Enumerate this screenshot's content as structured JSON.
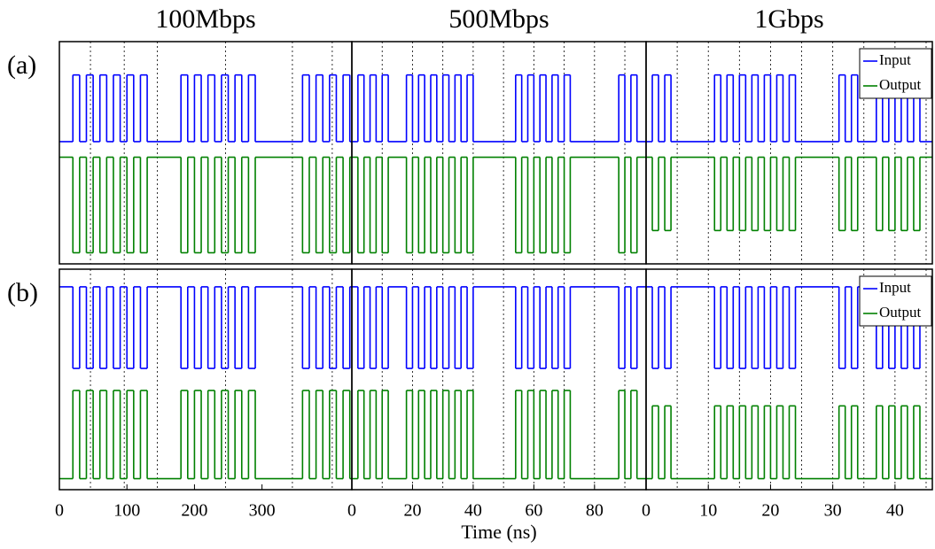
{
  "chart_data": [
    {
      "type": "line",
      "title": "100Mbps",
      "label": "(a)",
      "xlim": [
        0,
        433
      ],
      "ylim": [
        0,
        1
      ],
      "xgrid": [
        46,
        96,
        145,
        246,
        345,
        404
      ],
      "x": [
        0,
        20,
        30,
        40,
        50,
        60,
        70,
        80,
        90,
        100,
        110,
        120,
        130,
        180,
        190,
        200,
        210,
        220,
        230,
        240,
        250,
        260,
        270,
        280,
        290,
        360,
        370,
        380,
        390,
        400,
        410,
        420,
        430
      ],
      "series": [
        {
          "color": "#0000ff",
          "values": [
            0.55,
            0.85,
            0.55,
            0.85,
            0.55,
            0.85,
            0.55,
            0.85,
            0.55,
            0.85,
            0.55,
            0.85,
            0.55,
            0.85,
            0.55,
            0.85,
            0.55,
            0.85,
            0.55,
            0.85,
            0.55,
            0.85,
            0.55,
            0.85,
            0.55,
            0.85,
            0.55,
            0.85,
            0.55,
            0.85,
            0.55,
            0.85,
            0.55
          ]
        },
        {
          "color": "#008000",
          "values": [
            0.48,
            0.05,
            0.48,
            0.05,
            0.48,
            0.05,
            0.48,
            0.05,
            0.48,
            0.05,
            0.48,
            0.05,
            0.48,
            0.05,
            0.48,
            0.05,
            0.48,
            0.05,
            0.48,
            0.05,
            0.48,
            0.05,
            0.48,
            0.05,
            0.48,
            0.05,
            0.48,
            0.05,
            0.48,
            0.05,
            0.48,
            0.05,
            0.48
          ]
        }
      ]
    },
    {
      "type": "line",
      "title": "500Mbps",
      "xlim": [
        0,
        97
      ],
      "ylim": [
        0,
        1
      ],
      "xgrid": [
        10,
        20,
        30,
        40,
        50,
        60,
        70,
        80,
        90
      ],
      "x": [
        0,
        2,
        4,
        6,
        8,
        10,
        12,
        18,
        20,
        22,
        24,
        26,
        28,
        30,
        32,
        34,
        36,
        38,
        40,
        54,
        56,
        58,
        60,
        62,
        64,
        66,
        68,
        70,
        72,
        88,
        90,
        92,
        94
      ],
      "series": [
        {
          "color": "#0000ff",
          "values": [
            0.55,
            0.85,
            0.55,
            0.85,
            0.55,
            0.85,
            0.55,
            0.85,
            0.55,
            0.85,
            0.55,
            0.85,
            0.55,
            0.85,
            0.55,
            0.85,
            0.55,
            0.85,
            0.55,
            0.85,
            0.55,
            0.85,
            0.55,
            0.85,
            0.55,
            0.85,
            0.55,
            0.85,
            0.55,
            0.85,
            0.55,
            0.85,
            0.55
          ]
        },
        {
          "color": "#008000",
          "values": [
            0.48,
            0.05,
            0.48,
            0.05,
            0.48,
            0.05,
            0.48,
            0.05,
            0.48,
            0.05,
            0.48,
            0.05,
            0.48,
            0.05,
            0.48,
            0.05,
            0.48,
            0.05,
            0.48,
            0.05,
            0.48,
            0.05,
            0.48,
            0.05,
            0.48,
            0.05,
            0.48,
            0.05,
            0.48,
            0.05,
            0.48,
            0.05,
            0.48
          ]
        }
      ]
    },
    {
      "type": "line",
      "title": "1Gbps",
      "xlim": [
        0,
        46
      ],
      "ylim": [
        0,
        1
      ],
      "xgrid": [
        5,
        10,
        15,
        20,
        25,
        30,
        35,
        40,
        45
      ],
      "legend": "upper right",
      "x": [
        0,
        1,
        2,
        3,
        4,
        11,
        12,
        13,
        14,
        15,
        16,
        17,
        18,
        19,
        20,
        21,
        22,
        23,
        24,
        31,
        32,
        33,
        34,
        37,
        38,
        39,
        40,
        41,
        42,
        43,
        44
      ],
      "series": [
        {
          "name": "Input",
          "color": "#0000ff",
          "values": [
            0.55,
            0.85,
            0.55,
            0.85,
            0.55,
            0.85,
            0.55,
            0.85,
            0.55,
            0.85,
            0.55,
            0.85,
            0.55,
            0.85,
            0.55,
            0.85,
            0.55,
            0.85,
            0.55,
            0.85,
            0.55,
            0.85,
            0.55,
            0.85,
            0.55,
            0.85,
            0.55,
            0.85,
            0.55,
            0.85,
            0.55
          ]
        },
        {
          "name": "Output",
          "color": "#008000",
          "values": [
            0.48,
            0.15,
            0.48,
            0.15,
            0.48,
            0.15,
            0.48,
            0.15,
            0.48,
            0.15,
            0.48,
            0.15,
            0.48,
            0.15,
            0.48,
            0.15,
            0.48,
            0.15,
            0.48,
            0.15,
            0.48,
            0.15,
            0.48,
            0.15,
            0.48,
            0.15,
            0.48,
            0.15,
            0.48,
            0.15,
            0.48
          ]
        }
      ]
    },
    {
      "type": "line",
      "label": "(b)",
      "xlim": [
        0,
        433
      ],
      "ylim": [
        0,
        1
      ],
      "xticks": [
        0,
        100,
        200,
        300
      ],
      "xgrid": [
        46,
        96,
        145,
        246,
        345,
        404
      ],
      "x": [
        0,
        20,
        30,
        40,
        50,
        60,
        70,
        80,
        90,
        100,
        110,
        120,
        130,
        180,
        190,
        200,
        210,
        220,
        230,
        240,
        250,
        260,
        270,
        280,
        290,
        360,
        370,
        380,
        390,
        400,
        410,
        420,
        430
      ],
      "series": [
        {
          "color": "#0000ff",
          "values": [
            0.92,
            0.55,
            0.92,
            0.55,
            0.92,
            0.55,
            0.92,
            0.55,
            0.92,
            0.55,
            0.92,
            0.55,
            0.92,
            0.55,
            0.92,
            0.55,
            0.92,
            0.55,
            0.92,
            0.55,
            0.92,
            0.55,
            0.92,
            0.55,
            0.92,
            0.55,
            0.92,
            0.55,
            0.92,
            0.55,
            0.92,
            0.55,
            0.92
          ]
        },
        {
          "color": "#008000",
          "values": [
            0.05,
            0.45,
            0.05,
            0.45,
            0.05,
            0.45,
            0.05,
            0.45,
            0.05,
            0.45,
            0.05,
            0.45,
            0.05,
            0.45,
            0.05,
            0.45,
            0.05,
            0.45,
            0.05,
            0.45,
            0.05,
            0.45,
            0.05,
            0.45,
            0.05,
            0.45,
            0.05,
            0.45,
            0.05,
            0.45,
            0.05,
            0.45,
            0.05
          ]
        }
      ]
    },
    {
      "type": "line",
      "xlim": [
        0,
        97
      ],
      "ylim": [
        0,
        1
      ],
      "xticks": [
        0,
        20,
        40,
        60,
        80
      ],
      "xlabel": "Time (ns)",
      "xgrid": [
        10,
        20,
        30,
        40,
        50,
        60,
        70,
        80,
        90
      ],
      "x": [
        0,
        2,
        4,
        6,
        8,
        10,
        12,
        18,
        20,
        22,
        24,
        26,
        28,
        30,
        32,
        34,
        36,
        38,
        40,
        54,
        56,
        58,
        60,
        62,
        64,
        66,
        68,
        70,
        72,
        88,
        90,
        92,
        94
      ],
      "series": [
        {
          "color": "#0000ff",
          "values": [
            0.92,
            0.55,
            0.92,
            0.55,
            0.92,
            0.55,
            0.92,
            0.55,
            0.92,
            0.55,
            0.92,
            0.55,
            0.92,
            0.55,
            0.92,
            0.55,
            0.92,
            0.55,
            0.92,
            0.55,
            0.92,
            0.55,
            0.92,
            0.55,
            0.92,
            0.55,
            0.92,
            0.55,
            0.92,
            0.55,
            0.92,
            0.55,
            0.92
          ]
        },
        {
          "color": "#008000",
          "values": [
            0.05,
            0.45,
            0.05,
            0.45,
            0.05,
            0.45,
            0.05,
            0.45,
            0.05,
            0.45,
            0.05,
            0.45,
            0.05,
            0.45,
            0.05,
            0.45,
            0.05,
            0.45,
            0.05,
            0.45,
            0.05,
            0.45,
            0.05,
            0.45,
            0.05,
            0.45,
            0.05,
            0.45,
            0.05,
            0.45,
            0.05,
            0.45,
            0.05
          ]
        }
      ]
    },
    {
      "type": "line",
      "xlim": [
        0,
        46
      ],
      "ylim": [
        0,
        1
      ],
      "xticks": [
        0,
        10,
        20,
        30,
        40
      ],
      "xgrid": [
        5,
        10,
        15,
        20,
        25,
        30,
        35,
        40,
        45
      ],
      "legend": "upper right",
      "x": [
        0,
        1,
        2,
        3,
        4,
        11,
        12,
        13,
        14,
        15,
        16,
        17,
        18,
        19,
        20,
        21,
        22,
        23,
        24,
        31,
        32,
        33,
        34,
        37,
        38,
        39,
        40,
        41,
        42,
        43,
        44
      ],
      "series": [
        {
          "name": "Input",
          "color": "#0000ff",
          "values": [
            0.92,
            0.55,
            0.92,
            0.55,
            0.92,
            0.55,
            0.92,
            0.55,
            0.92,
            0.55,
            0.92,
            0.55,
            0.92,
            0.55,
            0.92,
            0.55,
            0.92,
            0.55,
            0.92,
            0.55,
            0.92,
            0.55,
            0.92,
            0.55,
            0.92,
            0.55,
            0.92,
            0.55,
            0.92,
            0.55,
            0.92
          ]
        },
        {
          "name": "Output",
          "color": "#008000",
          "values": [
            0.05,
            0.38,
            0.05,
            0.38,
            0.05,
            0.38,
            0.05,
            0.38,
            0.05,
            0.38,
            0.05,
            0.38,
            0.05,
            0.38,
            0.05,
            0.38,
            0.05,
            0.38,
            0.05,
            0.38,
            0.05,
            0.38,
            0.05,
            0.38,
            0.05,
            0.38,
            0.05,
            0.38,
            0.05,
            0.38,
            0.05
          ]
        }
      ]
    }
  ]
}
